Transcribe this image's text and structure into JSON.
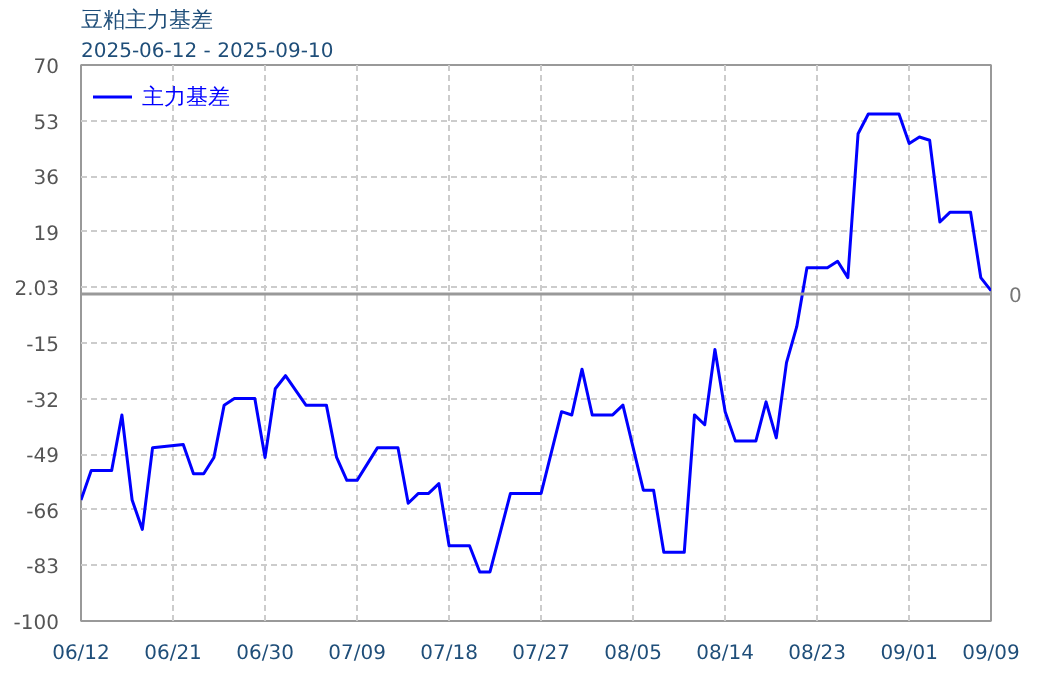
{
  "chart_data": {
    "type": "line",
    "title": "豆粕主力基差",
    "subtitle": "2025-06-12 - 2025-09-10",
    "x": [
      "2025-06-12",
      "2025-06-13",
      "2025-06-15",
      "2025-06-16",
      "2025-06-17",
      "2025-06-18",
      "2025-06-19",
      "2025-06-22",
      "2025-06-23",
      "2025-06-24",
      "2025-06-25",
      "2025-06-26",
      "2025-06-27",
      "2025-06-29",
      "2025-06-30",
      "2025-07-01",
      "2025-07-02",
      "2025-07-04",
      "2025-07-06",
      "2025-07-07",
      "2025-07-08",
      "2025-07-09",
      "2025-07-11",
      "2025-07-13",
      "2025-07-14",
      "2025-07-15",
      "2025-07-16",
      "2025-07-17",
      "2025-07-18",
      "2025-07-20",
      "2025-07-21",
      "2025-07-22",
      "2025-07-24",
      "2025-07-27",
      "2025-07-29",
      "2025-07-30",
      "2025-07-31",
      "2025-08-01",
      "2025-08-03",
      "2025-08-04",
      "2025-08-06",
      "2025-08-07",
      "2025-08-08",
      "2025-08-10",
      "2025-08-11",
      "2025-08-12",
      "2025-08-13",
      "2025-08-14",
      "2025-08-15",
      "2025-08-17",
      "2025-08-18",
      "2025-08-19",
      "2025-08-20",
      "2025-08-21",
      "2025-08-22",
      "2025-08-24",
      "2025-08-25",
      "2025-08-26",
      "2025-08-27",
      "2025-08-28",
      "2025-08-31",
      "2025-09-01",
      "2025-09-02",
      "2025-09-03",
      "2025-09-04",
      "2025-09-05",
      "2025-09-07",
      "2025-09-08",
      "2025-09-09"
    ],
    "series": [
      {
        "name": "主力基差",
        "color": "#0000ff",
        "values": [
          -63,
          -54,
          -54,
          -37,
          -63,
          -72,
          -47,
          -46,
          -55,
          -55,
          -50,
          -34,
          -32,
          -32,
          -50,
          -29,
          -25,
          -34,
          -34,
          -50,
          -57,
          -57,
          -47,
          -47,
          -64,
          -61,
          -61,
          -58,
          -77,
          -77,
          -85,
          -85,
          -61,
          -61,
          -36,
          -37,
          -23,
          -37,
          -37,
          -34,
          -60,
          -60,
          -79,
          -79,
          -37,
          -40,
          -17,
          -36,
          -45,
          -45,
          -33,
          -44,
          -21,
          -10,
          8,
          8,
          10,
          5,
          49,
          55,
          55,
          46,
          48,
          47,
          22,
          25,
          25,
          5,
          1
        ]
      }
    ],
    "xlim": [
      "2025-06-12",
      "2025-09-09"
    ],
    "xticks": [
      {
        "value": "2025-06-12",
        "label": "06/12"
      },
      {
        "value": "2025-06-21",
        "label": "06/21"
      },
      {
        "value": "2025-06-30",
        "label": "06/30"
      },
      {
        "value": "2025-07-09",
        "label": "07/09"
      },
      {
        "value": "2025-07-18",
        "label": "07/18"
      },
      {
        "value": "2025-07-27",
        "label": "07/27"
      },
      {
        "value": "2025-08-05",
        "label": "08/05"
      },
      {
        "value": "2025-08-14",
        "label": "08/14"
      },
      {
        "value": "2025-08-23",
        "label": "08/23"
      },
      {
        "value": "2025-09-01",
        "label": "09/01"
      },
      {
        "value": "2025-09-09",
        "label": "09/09"
      }
    ],
    "ylim": [
      -100,
      70
    ],
    "yticks": [
      -100,
      -83,
      -66,
      -49,
      -32,
      -15,
      2.03,
      19,
      36,
      53,
      70
    ],
    "ref_lines": [
      {
        "axis": "y",
        "value": 0,
        "label": "0",
        "color": "#999999"
      }
    ],
    "grid": true,
    "legend": "top left",
    "marker": "none",
    "line_style": "solid"
  }
}
